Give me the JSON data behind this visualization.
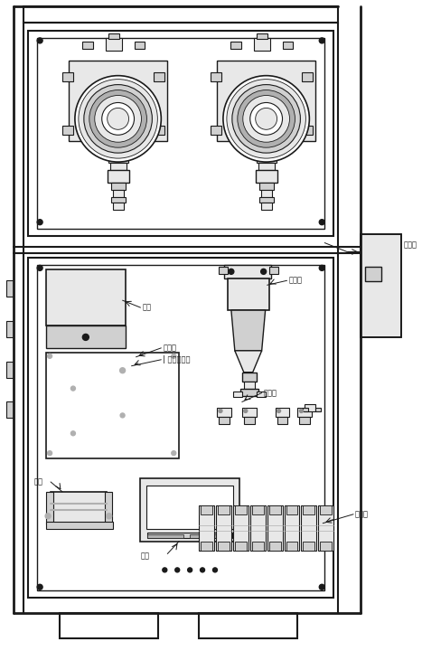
{
  "bg_color": "#ffffff",
  "lc": "#1a1a1a",
  "gray1": "#e8e8e8",
  "gray2": "#d0d0d0",
  "gray3": "#b0b0b0",
  "gray4": "#909090",
  "labels": {
    "qi_beng": "气泵",
    "dian_lu_ban": "电路板",
    "zhuan_jie_guan": "| 转二转接管",
    "lv_shui_qi": "滤水器",
    "zhuan_lu_guan": "转接管",
    "kai_guan": "开关",
    "dian_yuan": "电源",
    "liu_liang_ji": "流量计",
    "dian_ci_fa": "电磁阀"
  },
  "figsize": [
    4.67,
    7.2
  ],
  "dpi": 100
}
